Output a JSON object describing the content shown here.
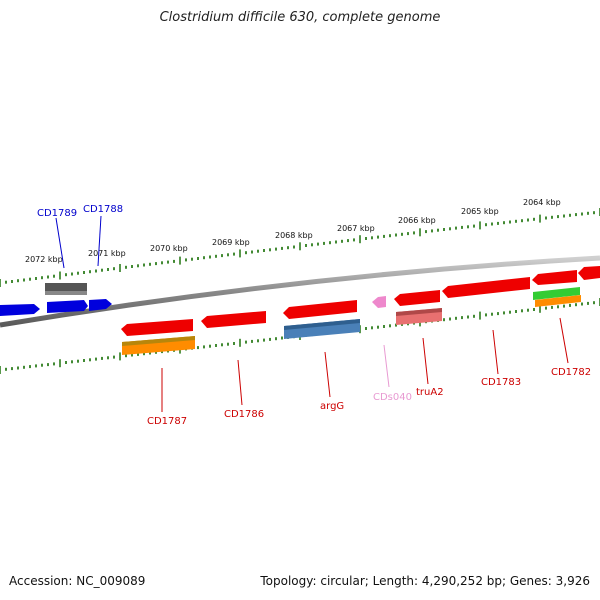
{
  "title": "Clostridium difficile 630, complete genome",
  "footer": {
    "accession": "Accession: NC_009089",
    "stats": "Topology: circular; Length: 4,290,252 bp; Genes: 3,926"
  },
  "colors": {
    "backbone": "#8a8a8a",
    "tick": "#2e7d1e",
    "label_red": "#cc0000",
    "label_blue": "#0000cc",
    "label_pink": "#e89ad2"
  },
  "scale_labels": [
    "2072 kbp",
    "2071 kbp",
    "2070 kbp",
    "2069 kbp",
    "2068 kbp",
    "2067 kbp",
    "2066 kbp",
    "2065 kbp",
    "2064 kbp"
  ],
  "genes": [
    {
      "label": "CD1789",
      "strand": "forward",
      "color": "#555555"
    },
    {
      "label": "CD1788",
      "strand": "forward",
      "color": "#0000dd"
    },
    {
      "label": "CD1787",
      "strand": "reverse",
      "color": "#ee0000"
    },
    {
      "label": "CD1786",
      "strand": "reverse",
      "color": "#ee0000"
    },
    {
      "label": "argG",
      "strand": "reverse",
      "color": "#4a80b8"
    },
    {
      "label": "CDs040",
      "strand": "reverse",
      "color": "#ee88cc"
    },
    {
      "label": "truA2",
      "strand": "reverse",
      "color": "#e87070"
    },
    {
      "label": "CD1783",
      "strand": "reverse",
      "color": "#ee0000"
    },
    {
      "label": "CD1782",
      "strand": "reverse",
      "color": "#ee0000"
    }
  ]
}
